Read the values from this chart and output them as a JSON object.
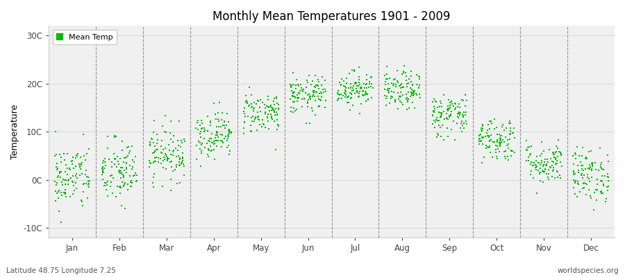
{
  "title": "Monthly Mean Temperatures 1901 - 2009",
  "ylabel": "Temperature",
  "bottom_left_label": "Latitude 48.75 Longitude 7.25",
  "bottom_right_label": "worldspecies.org",
  "legend_label": "Mean Temp",
  "dot_color": "#00bb00",
  "dot_size": 2.5,
  "background_color": "#ffffff",
  "plot_bg_color": "#f0f0f0",
  "yticks": [
    -10,
    0,
    10,
    20,
    30
  ],
  "ytick_labels": [
    "-10C",
    "0C",
    "10C",
    "20C",
    "30C"
  ],
  "ylim": [
    -12,
    32
  ],
  "months": [
    "Jan",
    "Feb",
    "Mar",
    "Apr",
    "May",
    "Jun",
    "Jul",
    "Aug",
    "Sep",
    "Oct",
    "Nov",
    "Dec"
  ],
  "monthly_means": [
    0.5,
    1.5,
    5.5,
    9.5,
    14.0,
    17.5,
    19.0,
    18.5,
    13.5,
    8.5,
    3.5,
    1.0
  ],
  "monthly_stds": [
    3.5,
    3.5,
    2.8,
    2.5,
    2.2,
    2.0,
    1.8,
    2.0,
    2.3,
    2.3,
    2.2,
    2.8
  ],
  "n_years": 109,
  "seed": 42,
  "dashed_line_positions": [
    1,
    2,
    3,
    4,
    5,
    6,
    7,
    8,
    9,
    10,
    11
  ],
  "xlim": [
    0,
    12
  ],
  "xtick_positions": [
    0.5,
    1.5,
    2.5,
    3.5,
    4.5,
    5.5,
    6.5,
    7.5,
    8.5,
    9.5,
    10.5,
    11.5
  ]
}
